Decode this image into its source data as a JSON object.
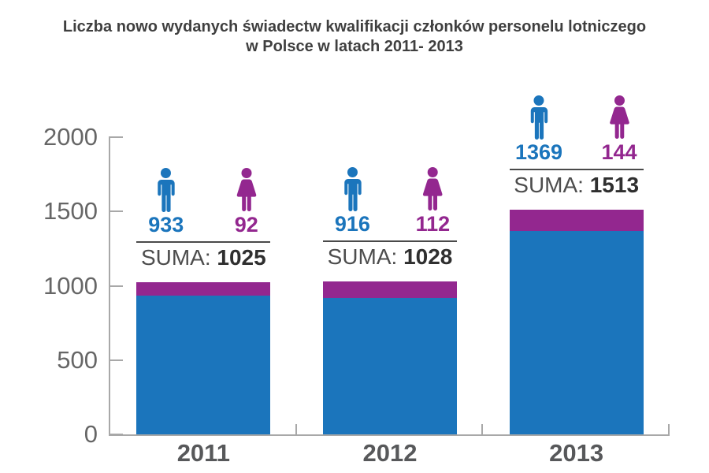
{
  "chart_data": {
    "type": "bar",
    "stacked": true,
    "title": "Liczba nowo wydanych świadectw kwalifikacji członków personelu lotniczego w Polsce w latach 2011- 2013",
    "title_lines": [
      "Liczba nowo wydanych świadectw kwalifikacji członków personelu lotniczego",
      "w Polsce w latach 2011- 2013"
    ],
    "categories": [
      "2011",
      "2012",
      "2013"
    ],
    "series": [
      {
        "name": "male",
        "icon": "male-icon",
        "color": "#1B75BC",
        "values": [
          933,
          916,
          1369
        ]
      },
      {
        "name": "female",
        "icon": "female-icon",
        "color": "#93278F",
        "values": [
          92,
          112,
          144
        ]
      }
    ],
    "totals": {
      "label": "SUMA:",
      "values": [
        1025,
        1028,
        1513
      ]
    },
    "xlabel": "",
    "ylabel": "",
    "ylim": [
      0,
      2000
    ],
    "yticks": [
      0,
      500,
      1000,
      1500,
      2000
    ],
    "grid": false,
    "legend_position": "above-bars",
    "colors": {
      "axis": "#A8A8A8",
      "y_tick_label": "#666666",
      "year_label": "#57585A",
      "suma_label": "#4D4D4D",
      "suma_value": "#2F2F2F",
      "divider": "#4A4A4A",
      "title": "#3F3F3F"
    }
  }
}
